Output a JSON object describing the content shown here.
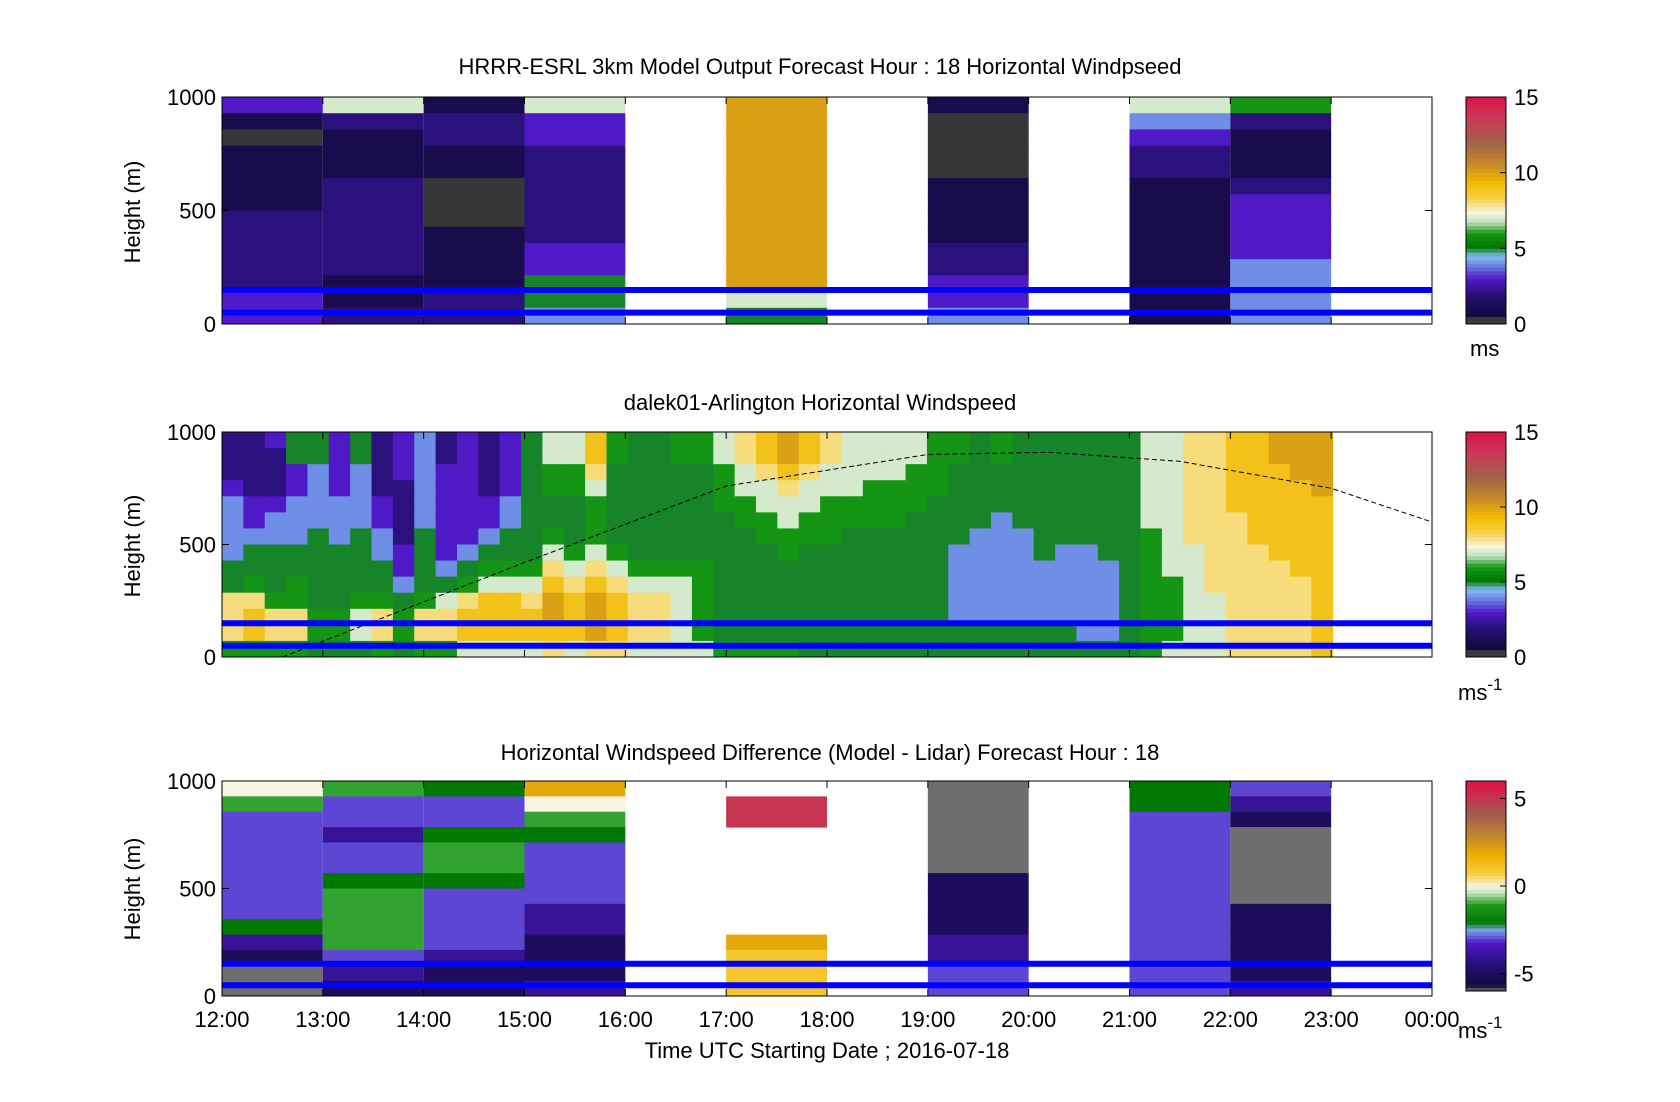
{
  "figure": {
    "xlabel": "Time UTC  Starting Date ; 2016-07-18",
    "x_ticks": [
      "12:00",
      "13:00",
      "14:00",
      "15:00",
      "16:00",
      "17:00",
      "18:00",
      "19:00",
      "20:00",
      "21:00",
      "22:00",
      "23:00",
      "00:00"
    ],
    "line_color": "#0000ff",
    "sun_curve_color": "#000000"
  },
  "chart_data": [
    {
      "type": "heatmap",
      "title": "HRRR-ESRL 3km Model Output   Forecast Hour : 18 Horizontal Windpseed",
      "ylabel": "Height (m)",
      "ylim": [
        0,
        1000
      ],
      "y_ticks": [
        "0",
        "500",
        "1000"
      ],
      "x_range_hours": [
        12,
        24
      ],
      "colorbar": {
        "ticks": [
          "0",
          "5",
          "10",
          "15"
        ],
        "unit": "ms",
        "range": [
          0,
          15
        ]
      },
      "reference_lines_m": [
        50,
        150
      ],
      "columns": [
        {
          "start": 12,
          "end": 13,
          "values": [
            3,
            1,
            0,
            1,
            1,
            1,
            1,
            2,
            2,
            2,
            2,
            2,
            3,
            3
          ]
        },
        {
          "start": 13,
          "end": 14,
          "values": [
            7,
            2,
            1,
            1,
            1,
            2,
            2,
            2,
            2,
            2,
            2,
            1,
            1,
            2
          ]
        },
        {
          "start": 14,
          "end": 15,
          "values": [
            1,
            2,
            2,
            1,
            1,
            0,
            0,
            0,
            1,
            1,
            1,
            1,
            2,
            2
          ]
        },
        {
          "start": 15,
          "end": 16,
          "values": [
            7,
            3,
            3,
            2,
            2,
            2,
            2,
            2,
            2,
            3,
            3,
            5,
            5,
            4
          ]
        },
        {
          "start": 16,
          "end": 17,
          "values": null
        },
        {
          "start": 17,
          "end": 18,
          "values": [
            10,
            10,
            10,
            10,
            10,
            10,
            10,
            10,
            10,
            10,
            10,
            10,
            7,
            5
          ]
        },
        {
          "start": 18,
          "end": 19,
          "values": null
        },
        {
          "start": 19,
          "end": 20,
          "values": [
            1,
            0,
            0,
            0,
            0,
            1,
            1,
            1,
            1,
            2,
            2,
            3,
            3,
            4
          ]
        },
        {
          "start": 20,
          "end": 21,
          "values": null
        },
        {
          "start": 21,
          "end": 22,
          "values": [
            7,
            4,
            3,
            2,
            2,
            1,
            1,
            1,
            1,
            1,
            1,
            1,
            1,
            1
          ]
        },
        {
          "start": 22,
          "end": 23,
          "values": [
            6,
            2,
            1,
            1,
            1,
            2,
            3,
            3,
            3,
            3,
            4,
            4,
            4,
            4
          ]
        },
        {
          "start": 23,
          "end": 24,
          "values": null
        }
      ]
    },
    {
      "type": "heatmap",
      "title": "dalek01-Arlington  Horizontal Windspeed",
      "ylabel": "Height (m)",
      "ylim": [
        0,
        1000
      ],
      "y_ticks": [
        "0",
        "500",
        "1000"
      ],
      "x_range_hours": [
        12,
        24
      ],
      "colorbar": {
        "ticks": [
          "0",
          "5",
          "10",
          "15"
        ],
        "unit": "ms",
        "unit_exponent": "-1",
        "range": [
          0,
          15
        ]
      },
      "reference_lines_m": [
        50,
        150
      ],
      "sun_elevation_curve": {
        "x_hours": [
          12.6,
          15,
          17,
          19,
          20.2,
          21.5,
          23,
          24
        ],
        "y_m": [
          0,
          420,
          760,
          900,
          910,
          870,
          750,
          600
        ]
      },
      "column_profiles": [
        [
          2,
          2,
          2,
          3,
          4,
          4,
          4,
          4,
          5,
          5,
          8,
          8,
          8,
          6
        ],
        [
          2,
          2,
          2,
          2,
          3,
          3,
          4,
          5,
          5,
          6,
          8,
          9,
          9,
          6
        ],
        [
          3,
          2,
          2,
          2,
          3,
          4,
          4,
          5,
          5,
          5,
          6,
          8,
          8,
          6
        ],
        [
          5,
          5,
          3,
          3,
          4,
          4,
          4,
          5,
          5,
          6,
          6,
          8,
          8,
          6
        ],
        [
          5,
          5,
          4,
          4,
          4,
          4,
          5,
          5,
          5,
          5,
          5,
          6,
          6,
          5
        ],
        [
          3,
          3,
          3,
          3,
          4,
          4,
          4,
          5,
          5,
          5,
          5,
          6,
          6,
          5
        ],
        [
          5,
          5,
          4,
          4,
          4,
          4,
          5,
          5,
          5,
          5,
          6,
          7,
          7,
          5
        ],
        [
          2,
          2,
          2,
          2,
          3,
          3,
          4,
          4,
          5,
          5,
          6,
          8,
          8,
          6
        ],
        [
          3,
          3,
          3,
          2,
          2,
          2,
          2,
          3,
          3,
          4,
          5,
          6,
          6,
          5
        ],
        [
          4,
          4,
          4,
          4,
          4,
          4,
          5,
          5,
          5,
          5,
          6,
          8,
          8,
          6
        ],
        [
          2,
          2,
          3,
          3,
          3,
          3,
          3,
          3,
          4,
          5,
          7,
          8,
          8,
          6
        ],
        [
          3,
          3,
          3,
          3,
          3,
          3,
          3,
          4,
          5,
          6,
          8,
          9,
          9,
          7
        ],
        [
          2,
          2,
          2,
          2,
          3,
          3,
          4,
          5,
          6,
          7,
          9,
          9,
          9,
          7
        ],
        [
          3,
          3,
          3,
          3,
          4,
          4,
          5,
          5,
          6,
          7,
          9,
          9,
          9,
          7
        ],
        [
          5,
          5,
          5,
          5,
          5,
          5,
          5,
          5,
          6,
          7,
          8,
          9,
          9,
          7
        ],
        [
          7,
          7,
          6,
          6,
          5,
          5,
          6,
          7,
          8,
          9,
          10,
          10,
          9,
          8
        ],
        [
          7,
          7,
          6,
          6,
          5,
          5,
          5,
          6,
          7,
          8,
          9,
          9,
          9,
          7
        ],
        [
          9,
          9,
          8,
          7,
          6,
          6,
          6,
          7,
          8,
          9,
          10,
          10,
          10,
          8
        ],
        [
          6,
          6,
          5,
          5,
          5,
          5,
          5,
          6,
          7,
          8,
          9,
          9,
          9,
          8
        ],
        [
          5,
          5,
          5,
          5,
          5,
          5,
          5,
          5,
          6,
          7,
          8,
          8,
          8,
          7
        ],
        [
          5,
          5,
          5,
          5,
          5,
          5,
          5,
          5,
          6,
          7,
          8,
          8,
          8,
          7
        ],
        [
          6,
          6,
          5,
          5,
          5,
          5,
          5,
          5,
          6,
          7,
          7,
          7,
          7,
          7
        ],
        [
          6,
          6,
          5,
          5,
          5,
          5,
          5,
          5,
          6,
          6,
          6,
          6,
          6,
          7
        ],
        [
          7,
          7,
          6,
          6,
          6,
          5,
          5,
          5,
          5,
          5,
          5,
          5,
          5,
          6
        ],
        [
          8,
          8,
          7,
          7,
          6,
          6,
          5,
          5,
          5,
          5,
          5,
          5,
          5,
          6
        ],
        [
          9,
          9,
          8,
          7,
          7,
          6,
          6,
          5,
          5,
          5,
          5,
          5,
          5,
          6
        ],
        [
          10,
          10,
          9,
          8,
          7,
          7,
          6,
          6,
          5,
          5,
          5,
          5,
          5,
          6
        ],
        [
          9,
          9,
          8,
          7,
          7,
          6,
          6,
          5,
          5,
          5,
          5,
          5,
          5,
          5
        ],
        [
          8,
          8,
          7,
          7,
          6,
          6,
          6,
          5,
          5,
          5,
          5,
          5,
          5,
          5
        ],
        [
          7,
          7,
          7,
          7,
          6,
          6,
          5,
          5,
          5,
          5,
          5,
          5,
          5,
          5
        ],
        [
          7,
          7,
          7,
          6,
          6,
          6,
          5,
          5,
          5,
          5,
          5,
          5,
          5,
          5
        ],
        [
          7,
          7,
          7,
          6,
          6,
          6,
          5,
          5,
          5,
          5,
          5,
          5,
          5,
          5
        ],
        [
          7,
          7,
          6,
          6,
          6,
          5,
          5,
          5,
          5,
          5,
          5,
          5,
          5,
          5
        ],
        [
          6,
          6,
          6,
          6,
          5,
          5,
          5,
          5,
          5,
          5,
          5,
          5,
          5,
          5
        ],
        [
          6,
          6,
          5,
          5,
          5,
          5,
          5,
          4,
          4,
          4,
          4,
          4,
          5,
          5
        ],
        [
          5,
          5,
          5,
          5,
          5,
          5,
          4,
          4,
          4,
          4,
          4,
          4,
          5,
          5
        ],
        [
          6,
          6,
          5,
          5,
          5,
          4,
          4,
          4,
          4,
          4,
          4,
          4,
          5,
          5
        ],
        [
          5,
          5,
          5,
          5,
          5,
          5,
          4,
          4,
          4,
          4,
          4,
          4,
          5,
          5
        ],
        [
          5,
          5,
          5,
          5,
          5,
          5,
          5,
          5,
          4,
          4,
          4,
          4,
          5,
          5
        ],
        [
          5,
          5,
          5,
          5,
          5,
          5,
          5,
          4,
          4,
          4,
          4,
          4,
          5,
          5
        ],
        [
          5,
          5,
          5,
          5,
          5,
          5,
          5,
          4,
          4,
          4,
          4,
          4,
          4,
          5
        ],
        [
          5,
          5,
          5,
          5,
          5,
          5,
          5,
          5,
          4,
          4,
          4,
          4,
          4,
          5
        ],
        [
          5,
          5,
          5,
          5,
          5,
          5,
          5,
          5,
          5,
          5,
          5,
          5,
          5,
          5
        ],
        [
          7,
          7,
          7,
          7,
          7,
          7,
          6,
          6,
          6,
          6,
          6,
          6,
          6,
          6
        ],
        [
          7,
          7,
          7,
          7,
          7,
          7,
          7,
          7,
          7,
          6,
          6,
          6,
          6,
          7
        ],
        [
          8,
          8,
          8,
          8,
          8,
          8,
          8,
          7,
          7,
          7,
          7,
          7,
          7,
          7
        ],
        [
          8,
          8,
          8,
          8,
          8,
          8,
          8,
          8,
          8,
          8,
          7,
          7,
          7,
          7
        ],
        [
          9,
          9,
          9,
          9,
          9,
          8,
          8,
          8,
          8,
          8,
          8,
          8,
          8,
          8
        ],
        [
          9,
          9,
          9,
          9,
          9,
          9,
          9,
          8,
          8,
          8,
          8,
          8,
          8,
          8
        ],
        [
          10,
          10,
          9,
          9,
          9,
          9,
          9,
          9,
          8,
          8,
          8,
          8,
          8,
          8
        ],
        [
          10,
          10,
          10,
          9,
          9,
          9,
          9,
          9,
          9,
          8,
          8,
          8,
          8,
          8
        ],
        [
          10,
          10,
          10,
          10,
          9,
          9,
          9,
          9,
          9,
          9,
          9,
          9,
          9,
          9
        ]
      ]
    },
    {
      "type": "heatmap",
      "title": "Horizontal Windspeed Difference (Model - Lidar) Forecast Hour : 18",
      "ylabel": "Height (m)",
      "ylim": [
        0,
        1000
      ],
      "y_ticks": [
        "0",
        "500",
        "1000"
      ],
      "x_range_hours": [
        12,
        24
      ],
      "colorbar": {
        "ticks": [
          "-5",
          "0",
          "5"
        ],
        "unit": "ms",
        "unit_exponent": "-1",
        "range": [
          -6,
          6
        ]
      },
      "reference_lines_m": [
        50,
        150
      ],
      "columns": [
        {
          "start": 12,
          "end": 13,
          "values": [
            0,
            -1,
            -3,
            -3,
            -3,
            -3,
            -3,
            -3,
            -3,
            -2,
            -4,
            -5,
            -6,
            -6
          ]
        },
        {
          "start": 13,
          "end": 14,
          "values": [
            -1,
            -3,
            -3,
            -4,
            -3,
            -3,
            -2,
            -1,
            -1,
            -1,
            -1,
            -3,
            -4,
            -5
          ]
        },
        {
          "start": 14,
          "end": 15,
          "values": [
            -2,
            -3,
            -3,
            -2,
            -1,
            -1,
            -2,
            -3,
            -3,
            -3,
            -3,
            -4,
            -5,
            -5
          ]
        },
        {
          "start": 15,
          "end": 16,
          "values": [
            2,
            0,
            -1,
            -2,
            -3,
            -3,
            -3,
            -3,
            -4,
            -4,
            -5,
            -5,
            -5,
            -4
          ]
        },
        {
          "start": 16,
          "end": 17,
          "values": null
        },
        {
          "start": 17,
          "end": 18,
          "values": [
            null,
            5,
            5,
            null,
            null,
            null,
            null,
            null,
            null,
            null,
            2,
            1,
            1,
            1
          ]
        },
        {
          "start": 18,
          "end": 19,
          "values": null
        },
        {
          "start": 19,
          "end": 20,
          "values": [
            -7,
            -7,
            -6,
            -6,
            -6,
            -6,
            -5,
            -5,
            -5,
            -5,
            -4,
            -4,
            -3,
            -3
          ]
        },
        {
          "start": 20,
          "end": 21,
          "values": null
        },
        {
          "start": 21,
          "end": 22,
          "values": [
            -2,
            -2,
            -3,
            -3,
            -3,
            -3,
            -3,
            -3,
            -3,
            -3,
            -3,
            -3,
            -3,
            -3
          ]
        },
        {
          "start": 22,
          "end": 23,
          "values": [
            -3,
            -4,
            -5,
            -6,
            -6,
            -6,
            -6,
            -6,
            -5,
            -5,
            -5,
            -5,
            -5,
            -4
          ]
        },
        {
          "start": 23,
          "end": 24,
          "values": null
        }
      ]
    }
  ]
}
